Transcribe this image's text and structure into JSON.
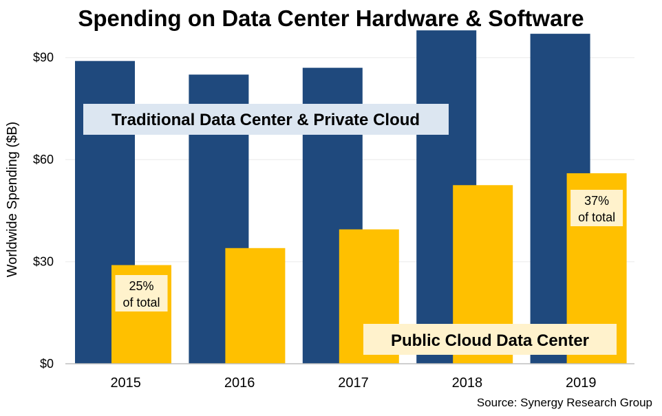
{
  "chart_data": {
    "type": "bar",
    "title": "Spending on Data Center Hardware & Software",
    "ylabel": "Worldwide Spending ($B)",
    "xlabel": "",
    "categories": [
      "2015",
      "2016",
      "2017",
      "2018",
      "2019"
    ],
    "ylim": [
      0,
      95
    ],
    "yticks": [
      0,
      30,
      60,
      90
    ],
    "ytick_labels": [
      "$0",
      "$30",
      "$60",
      "$90"
    ],
    "grid": true,
    "series": [
      {
        "name": "Traditional Data Center & Private Cloud",
        "color": "#1f497d",
        "values": [
          89,
          85,
          87,
          98,
          97
        ]
      },
      {
        "name": "Public Cloud Data Center",
        "color": "#ffc000",
        "values": [
          29,
          34,
          39.5,
          52.5,
          56
        ]
      }
    ],
    "annotations": [
      {
        "series": 1,
        "category": "2015",
        "line1": "25%",
        "line2": "of total"
      },
      {
        "series": 1,
        "category": "2019",
        "line1": "37%",
        "line2": "of total"
      }
    ],
    "source": "Source: Synergy Research Group"
  }
}
